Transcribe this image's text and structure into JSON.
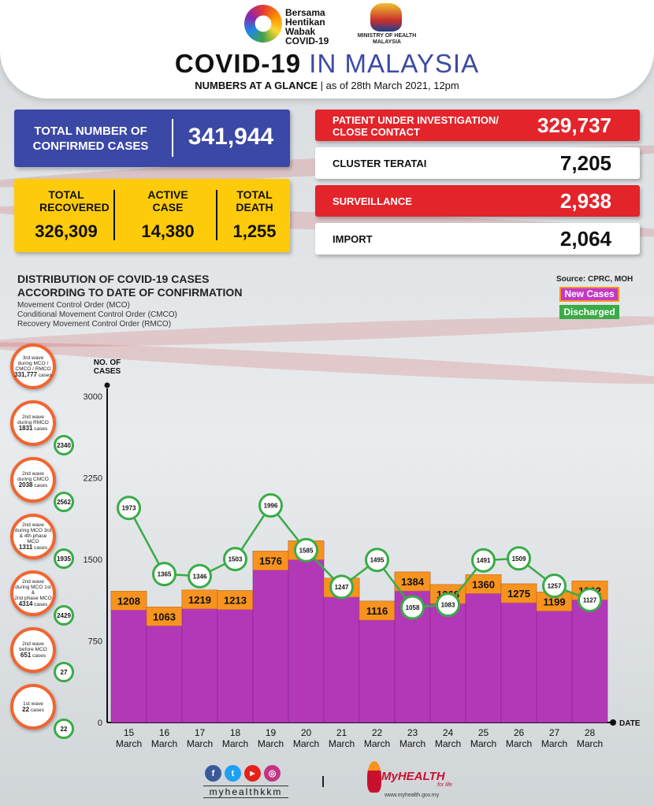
{
  "header": {
    "campaign": [
      "Bersama",
      "Hentikan",
      "Wabak",
      "COVID-19"
    ],
    "ministry": [
      "MINISTRY OF HEALTH",
      "MALAYSIA"
    ],
    "title_a": "COVID-19",
    "title_b": "IN MALAYSIA",
    "subtitle_bold": "NUMBERS AT A GLANCE",
    "subtitle_rest": " | as of 28th March 2021, 12pm"
  },
  "summary": {
    "total_label": "TOTAL NUMBER OF CONFIRMED CASES",
    "total_value": "341,944",
    "recovered_label": "TOTAL RECOVERED",
    "recovered_value": "326,309",
    "active_label": "ACTIVE CASE",
    "active_value": "14,380",
    "death_label": "TOTAL DEATH",
    "death_value": "1,255"
  },
  "stats": [
    {
      "label": "PATIENT UNDER INVESTIGATION/ CLOSE CONTACT",
      "value": "329,737",
      "color": "#e3242b"
    },
    {
      "label": "CLUSTER TERATAI",
      "value": "7,205",
      "color": "#ffffff"
    },
    {
      "label": "SURVEILLANCE",
      "value": "2,938",
      "color": "#e3242b"
    },
    {
      "label": "IMPORT",
      "value": "2,064",
      "color": "#ffffff"
    }
  ],
  "distribution": {
    "title_line1": "DISTRIBUTION OF COVID-19 CASES",
    "title_line2": "ACCORDING TO DATE OF CONFIRMATION",
    "sub1": "Movement Control Order (MCO)",
    "sub2": "Conditional Movement Control Order (CMCO)",
    "sub3": "Recovery Movement Control Order (RMCO)",
    "source": "Source: CPRC, MOH",
    "legend_new": "New Cases",
    "legend_discharged": "Discharged"
  },
  "waves": [
    {
      "lines": [
        "3rd wave",
        "during MCO /",
        "CMCO / RMCO"
      ],
      "cases_num": "331,777",
      "cases_word": "cases",
      "discharged": ""
    },
    {
      "lines": [
        "2nd wave",
        "during RMCO"
      ],
      "cases_num": "1831",
      "cases_word": "cases",
      "discharged": "2340"
    },
    {
      "lines": [
        "2nd wave",
        "during CMCO"
      ],
      "cases_num": "2038",
      "cases_word": "cases",
      "discharged": "2562"
    },
    {
      "lines": [
        "2nd wave",
        "during MCO 3rd",
        "& 4th phase MCO"
      ],
      "cases_num": "1311",
      "cases_word": "cases",
      "discharged": "1935"
    },
    {
      "lines": [
        "2nd wave",
        "during MCO 1st &",
        "2nd phase MCO"
      ],
      "cases_num": "4314",
      "cases_word": "cases",
      "discharged": "2429"
    },
    {
      "lines": [
        "2nd wave",
        "before MCO"
      ],
      "cases_num": "651",
      "cases_word": "cases",
      "discharged": "27"
    },
    {
      "lines": [
        "1st wave"
      ],
      "cases_num": "22",
      "cases_word": "cases",
      "discharged": "22"
    }
  ],
  "chart_data": {
    "type": "bar",
    "ylabel": "NO. OF CASES",
    "xlabel": "DATE",
    "ylim": [
      0,
      3000
    ],
    "yticks": [
      0,
      750,
      1500,
      2250,
      3000
    ],
    "categories": [
      "15 March",
      "16 March",
      "17 March",
      "18 March",
      "19 March",
      "20 March",
      "21 March",
      "22 March",
      "23 March",
      "24 March",
      "25 March",
      "26 March",
      "27 March",
      "28 March"
    ],
    "series": [
      {
        "name": "New Cases",
        "type": "bar",
        "values": [
          1208,
          1063,
          1219,
          1213,
          1576,
          1671,
          1327,
          1116,
          1384,
          1268,
          1360,
          1275,
          1199,
          1302
        ],
        "color": "#b338b8"
      },
      {
        "name": "Discharged",
        "type": "line",
        "values": [
          1973,
          1365,
          1346,
          1503,
          1996,
          1585,
          1247,
          1495,
          1058,
          1083,
          1491,
          1509,
          1257,
          1127
        ],
        "color": "#3aab47"
      }
    ]
  },
  "footer": {
    "handle": "myhealthkkm",
    "brand": "MyHEALTH",
    "tagline": "for life",
    "url": "www.myhealth.gov.my",
    "social": [
      "f",
      "t",
      "▶",
      "◎"
    ]
  }
}
